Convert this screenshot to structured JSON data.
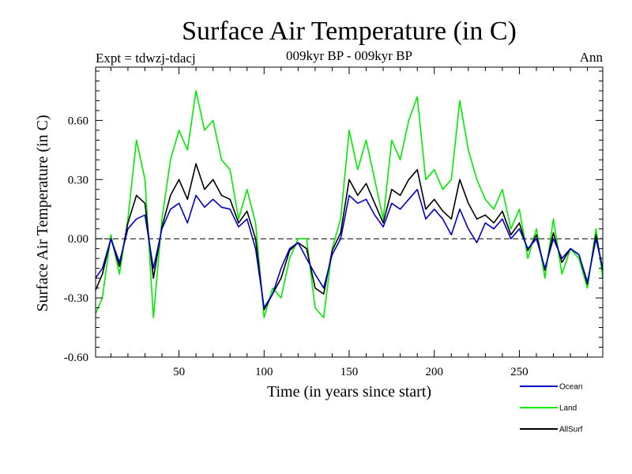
{
  "chart_data": {
    "type": "line",
    "title": "Surface Air Temperature (in C)",
    "subtitle": "009kyr BP - 009kyr BP",
    "left_note": "Expt = tdwzj-tdacj",
    "right_note": "Ann",
    "xlabel": "Time (in years since start)",
    "ylabel": "Surface Air Temperature (in C)",
    "xlim": [
      1,
      299
    ],
    "ylim": [
      -0.6,
      0.87
    ],
    "xticks": [
      50,
      100,
      150,
      200,
      250
    ],
    "xtick_labels": [
      "50",
      "100",
      "150",
      "200",
      "250"
    ],
    "yticks": [
      -0.6,
      -0.3,
      0.0,
      0.3,
      0.6
    ],
    "ytick_labels": [
      "-0.60",
      "-0.30",
      "0.00",
      "0.30",
      "0.60"
    ],
    "zero_line": "dashed",
    "grid": false,
    "legend_position": "bottom-right",
    "x": [
      1,
      5,
      10,
      15,
      20,
      25,
      30,
      35,
      40,
      45,
      50,
      55,
      60,
      65,
      70,
      75,
      80,
      85,
      90,
      95,
      100,
      105,
      110,
      115,
      120,
      125,
      130,
      135,
      140,
      145,
      150,
      155,
      160,
      165,
      170,
      175,
      180,
      185,
      190,
      195,
      200,
      205,
      210,
      215,
      220,
      225,
      230,
      235,
      240,
      245,
      250,
      255,
      260,
      265,
      270,
      275,
      280,
      285,
      290,
      295,
      299
    ],
    "series": [
      {
        "name": "Ocean",
        "color": "#0000cc",
        "values": [
          -0.2,
          -0.15,
          0.0,
          -0.12,
          0.05,
          0.1,
          0.12,
          -0.15,
          0.05,
          0.15,
          0.18,
          0.08,
          0.22,
          0.16,
          0.2,
          0.16,
          0.15,
          0.06,
          0.1,
          -0.05,
          -0.35,
          -0.28,
          -0.15,
          -0.05,
          -0.02,
          -0.1,
          -0.18,
          -0.25,
          -0.08,
          0.0,
          0.22,
          0.18,
          0.2,
          0.12,
          0.06,
          0.18,
          0.15,
          0.2,
          0.25,
          0.1,
          0.15,
          0.1,
          0.02,
          0.15,
          0.05,
          -0.02,
          0.08,
          0.05,
          0.1,
          0.0,
          0.05,
          -0.05,
          0.0,
          -0.15,
          0.0,
          -0.1,
          -0.05,
          -0.08,
          -0.22,
          0.0,
          -0.15
        ]
      },
      {
        "name": "Land",
        "color": "#00ee00",
        "values": [
          -0.38,
          -0.3,
          0.02,
          -0.18,
          0.1,
          0.5,
          0.3,
          -0.4,
          0.1,
          0.4,
          0.55,
          0.45,
          0.75,
          0.55,
          0.6,
          0.4,
          0.35,
          0.1,
          0.25,
          0.08,
          -0.4,
          -0.25,
          -0.3,
          -0.1,
          0.0,
          0.0,
          -0.35,
          -0.4,
          -0.05,
          0.1,
          0.55,
          0.35,
          0.5,
          0.3,
          0.1,
          0.5,
          0.4,
          0.6,
          0.72,
          0.3,
          0.35,
          0.25,
          0.3,
          0.7,
          0.45,
          0.3,
          0.2,
          0.15,
          0.25,
          0.05,
          0.15,
          -0.1,
          0.05,
          -0.2,
          0.1,
          -0.18,
          -0.05,
          -0.1,
          -0.25,
          0.05,
          -0.2
        ]
      },
      {
        "name": "AllSurf",
        "color": "#000000",
        "values": [
          -0.26,
          -0.18,
          0.0,
          -0.14,
          0.08,
          0.22,
          0.18,
          -0.2,
          0.06,
          0.22,
          0.3,
          0.2,
          0.38,
          0.25,
          0.3,
          0.22,
          0.2,
          0.08,
          0.14,
          0.0,
          -0.36,
          -0.28,
          -0.2,
          -0.06,
          -0.02,
          -0.05,
          -0.25,
          -0.28,
          -0.06,
          0.03,
          0.3,
          0.22,
          0.28,
          0.18,
          0.08,
          0.25,
          0.22,
          0.3,
          0.35,
          0.15,
          0.2,
          0.14,
          0.1,
          0.3,
          0.18,
          0.1,
          0.12,
          0.08,
          0.14,
          0.02,
          0.08,
          -0.06,
          0.02,
          -0.16,
          0.03,
          -0.12,
          -0.05,
          -0.08,
          -0.23,
          0.02,
          -0.16
        ]
      }
    ]
  }
}
